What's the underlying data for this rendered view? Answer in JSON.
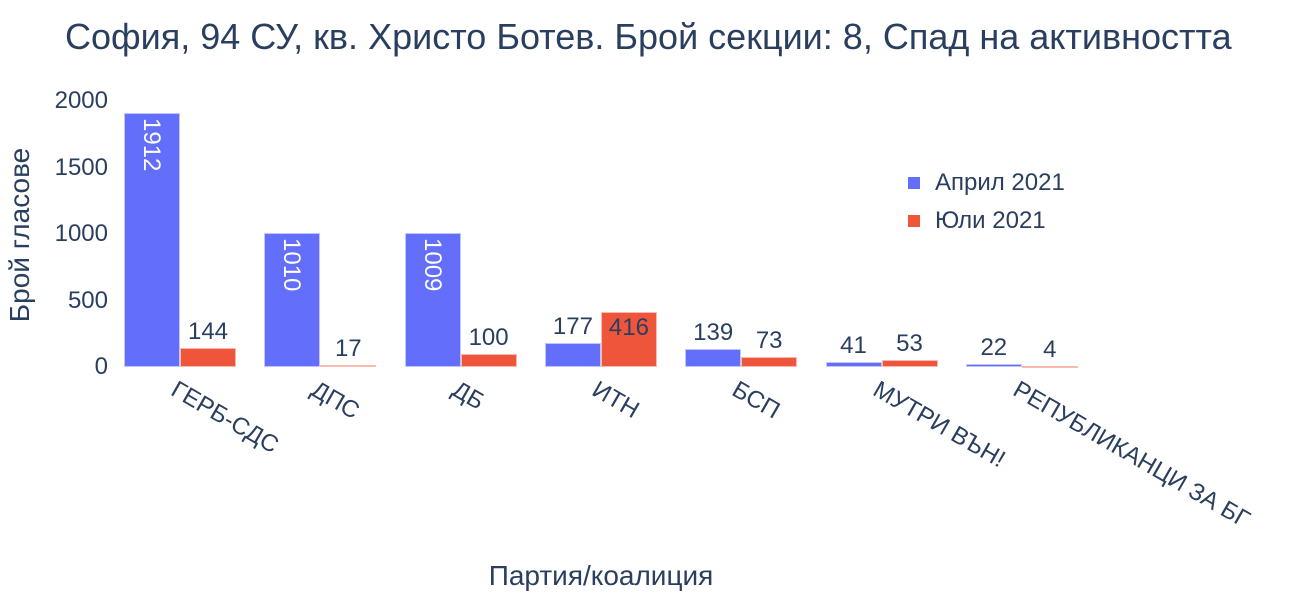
{
  "title": "София, 94 СУ, кв. Христо Ботев. Брой секции: 8,  Спад на активността",
  "chart_data": {
    "type": "bar",
    "title": "София, 94 СУ, кв. Христо Ботев. Брой секции: 8,  Спад на активността",
    "xlabel": "Партия/коалиция",
    "ylabel": "Брой гласове",
    "ylim": [
      0,
      2000
    ],
    "yticks": [
      "0",
      "500",
      "1000",
      "1500",
      "2000"
    ],
    "grid": false,
    "legend_position": "top-right",
    "categories": [
      "ГЕРБ-СДС",
      "ДПС",
      "ДБ",
      "ИТН",
      "БСП",
      "МУТРИ ВЪН!",
      "РЕПУБЛИКАНЦИ ЗА БГ"
    ],
    "series": [
      {
        "name": "Април 2021",
        "color": "#636efa",
        "values": [
          1912,
          1010,
          1009,
          177,
          139,
          41,
          22
        ]
      },
      {
        "name": "Юли 2021",
        "color": "#ef553b",
        "values": [
          144,
          17,
          100,
          416,
          73,
          53,
          4
        ]
      }
    ]
  }
}
